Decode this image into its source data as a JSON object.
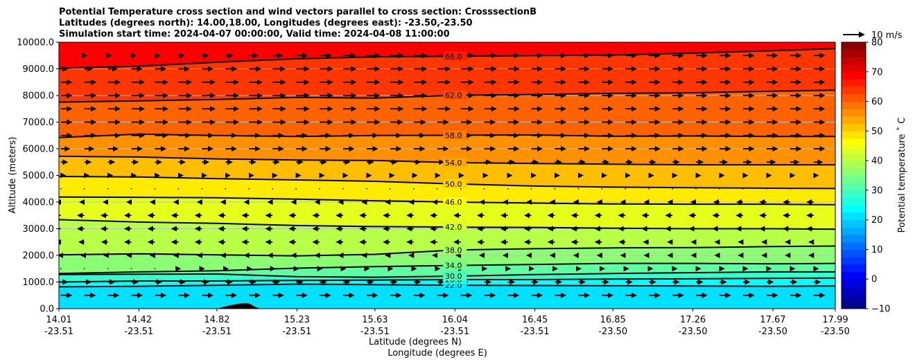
{
  "chart_data": {
    "type": "contour",
    "title_lines": [
      "Potential Temperature cross section and wind vectors parallel to cross section: CrosssectionB",
      "Latitudes (degrees north): 14.00,18.00, Longitudes (degrees east): -23.50,-23.50",
      "Simulation start time: 2024-04-07 00:00:00, Valid time: 2024-04-08 11:00:00"
    ],
    "ylabel": "Altitude (meters)",
    "xlabel_lat": "Latitude (degrees N)",
    "xlabel_lon": "Longitude (degrees E)",
    "ylim": [
      0,
      10000
    ],
    "y_ticks": [
      "0.0",
      "1000.0",
      "2000.0",
      "3000.0",
      "4000.0",
      "5000.0",
      "6000.0",
      "7000.0",
      "8000.0",
      "9000.0",
      "10000.0"
    ],
    "x_ticks": [
      {
        "lat": "14.01",
        "lon": "-23.51"
      },
      {
        "lat": "14.42",
        "lon": "-23.51"
      },
      {
        "lat": "14.82",
        "lon": "-23.51"
      },
      {
        "lat": "15.23",
        "lon": "-23.51"
      },
      {
        "lat": "15.63",
        "lon": "-23.51"
      },
      {
        "lat": "16.04",
        "lon": "-23.51"
      },
      {
        "lat": "16.45",
        "lon": "-23.51"
      },
      {
        "lat": "16.85",
        "lon": "-23.50"
      },
      {
        "lat": "17.26",
        "lon": "-23.50"
      },
      {
        "lat": "17.67",
        "lon": "-23.50"
      },
      {
        "lat": "17.99",
        "lon": "-23.50"
      }
    ],
    "colorbar": {
      "label": "Potential temperature $^\\circ$C",
      "label_display": "Potential temperature ˚ C",
      "range": [
        -10,
        80
      ],
      "ticks": [
        "−10",
        "0",
        "10",
        "20",
        "30",
        "40",
        "50",
        "60",
        "70",
        "80"
      ],
      "colormap": "jet"
    },
    "grid": true,
    "quiver_key": "10 m/s",
    "terrain": {
      "lat_start": 14.82,
      "lat_peak": 14.97,
      "lat_end": 15.05,
      "peak_altitude_m": 200
    },
    "contours": [
      {
        "level": 22,
        "label": "22.0",
        "altitude_m": [
          820,
          840,
          880,
          920,
          900,
          880,
          870,
          860,
          850,
          840,
          850
        ]
      },
      {
        "level": 26,
        "label": "26.0",
        "altitude_m": [
          1000,
          1040,
          1040,
          1060,
          1070,
          1090,
          1090,
          1110,
          1120,
          1140,
          1150
        ]
      },
      {
        "level": 30,
        "label": "30.0",
        "altitude_m": [
          1280,
          1290,
          1300,
          1200,
          1180,
          1220,
          1280,
          1320,
          1350,
          1380,
          1380
        ]
      },
      {
        "level": 34,
        "label": "34.0",
        "altitude_m": [
          1320,
          1380,
          1420,
          1520,
          1580,
          1620,
          1660,
          1700,
          1700,
          1680,
          1700
        ]
      },
      {
        "level": 38,
        "label": "38.0",
        "altitude_m": [
          2020,
          2060,
          2020,
          1980,
          2040,
          2200,
          2250,
          2280,
          2290,
          2330,
          2350
        ]
      },
      {
        "level": 42,
        "label": "42.0",
        "altitude_m": [
          3340,
          3250,
          3200,
          3120,
          3080,
          3060,
          3050,
          3020,
          3000,
          3000,
          2980
        ]
      },
      {
        "level": 46,
        "label": "46.0",
        "altitude_m": [
          4190,
          4180,
          4160,
          4110,
          4050,
          4000,
          3960,
          3930,
          3920,
          3920,
          3900
        ]
      },
      {
        "level": 50,
        "label": "50.0",
        "altitude_m": [
          4960,
          4940,
          4880,
          4830,
          4780,
          4680,
          4600,
          4560,
          4540,
          4520,
          4510
        ]
      },
      {
        "level": 54,
        "label": "54.0",
        "altitude_m": [
          5720,
          5690,
          5620,
          5580,
          5560,
          5480,
          5450,
          5420,
          5400,
          5400,
          5400
        ]
      },
      {
        "level": 58,
        "label": "58.0",
        "altitude_m": [
          6420,
          6550,
          6500,
          6460,
          6500,
          6510,
          6520,
          6470,
          6480,
          6460,
          6460
        ]
      },
      {
        "level": 62,
        "label": "62.0",
        "altitude_m": [
          7750,
          7800,
          7850,
          7930,
          7900,
          8010,
          8040,
          8080,
          8100,
          8160,
          8200
        ]
      },
      {
        "level": 66,
        "label": "66.0",
        "altitude_m": [
          9020,
          9100,
          9250,
          9380,
          9450,
          9470,
          9500,
          9520,
          9590,
          9680,
          9760
        ]
      }
    ],
    "wind_rows": [
      {
        "altitude_m": 9500,
        "u_ms": [
          0.5,
          2,
          3,
          5,
          6,
          6,
          5,
          5,
          5,
          5,
          5
        ]
      },
      {
        "altitude_m": 9000,
        "u_ms": [
          3,
          5,
          5,
          6,
          6,
          6,
          5,
          5,
          5,
          5,
          5
        ]
      },
      {
        "altitude_m": 8500,
        "u_ms": [
          5,
          6,
          6,
          6,
          6,
          6,
          5,
          5,
          5,
          5,
          5
        ]
      },
      {
        "altitude_m": 8000,
        "u_ms": [
          5,
          6,
          6,
          6,
          6,
          6,
          5,
          5,
          5,
          5,
          5
        ]
      },
      {
        "altitude_m": 7500,
        "u_ms": [
          5,
          6,
          6,
          6,
          6,
          6,
          5,
          5,
          5,
          5,
          5
        ]
      },
      {
        "altitude_m": 7000,
        "u_ms": [
          5,
          6,
          6,
          6,
          6,
          5,
          5,
          5,
          5,
          5,
          5
        ]
      },
      {
        "altitude_m": 6500,
        "u_ms": [
          5,
          6,
          5,
          5,
          5,
          5,
          5,
          5,
          5,
          5,
          5
        ]
      },
      {
        "altitude_m": 6000,
        "u_ms": [
          4,
          5,
          5,
          5,
          5,
          5,
          5,
          5,
          5,
          5,
          5
        ]
      },
      {
        "altitude_m": 5500,
        "u_ms": [
          3,
          3,
          3,
          3,
          3,
          3,
          3,
          3,
          3,
          4,
          4
        ]
      },
      {
        "altitude_m": 5000,
        "u_ms": [
          2,
          2,
          2,
          2,
          2,
          1,
          2,
          2,
          2,
          2,
          2
        ]
      },
      {
        "altitude_m": 4500,
        "u_ms": [
          0.3,
          0.3,
          0.3,
          0.3,
          0.3,
          0.3,
          0.3,
          0.3,
          0.3,
          0.3,
          0.3
        ]
      },
      {
        "altitude_m": 4000,
        "u_ms": [
          -2,
          -2,
          -2,
          -2,
          -2,
          -2,
          -2,
          -2,
          -2,
          -3,
          -3
        ]
      },
      {
        "altitude_m": 3500,
        "u_ms": [
          -3,
          -3,
          -3,
          -3,
          -3,
          -3,
          -3,
          -3,
          -3,
          -3,
          -3
        ]
      },
      {
        "altitude_m": 3000,
        "u_ms": [
          -3,
          -3,
          -3,
          -3,
          -3,
          -3,
          -3,
          -3,
          -3,
          -3,
          -3
        ]
      },
      {
        "altitude_m": 2500,
        "u_ms": [
          -2,
          -3,
          -3,
          -3,
          -3,
          -3,
          -3,
          -3,
          -2,
          -2,
          -2
        ]
      },
      {
        "altitude_m": 2000,
        "u_ms": [
          -1,
          -2,
          -2,
          -2,
          -2,
          -2,
          -2,
          -2,
          -2,
          -2,
          -2
        ]
      },
      {
        "altitude_m": 1500,
        "u_ms": [
          0.5,
          0.5,
          1,
          1,
          1,
          1,
          1,
          1,
          2,
          2,
          2
        ]
      },
      {
        "altitude_m": 1000,
        "u_ms": [
          3,
          3,
          3,
          3,
          3,
          3,
          3,
          3,
          3,
          3,
          3
        ]
      },
      {
        "altitude_m": 500,
        "u_ms": [
          5,
          5,
          5,
          5,
          5,
          5,
          5,
          5,
          5,
          5,
          5
        ]
      }
    ]
  }
}
